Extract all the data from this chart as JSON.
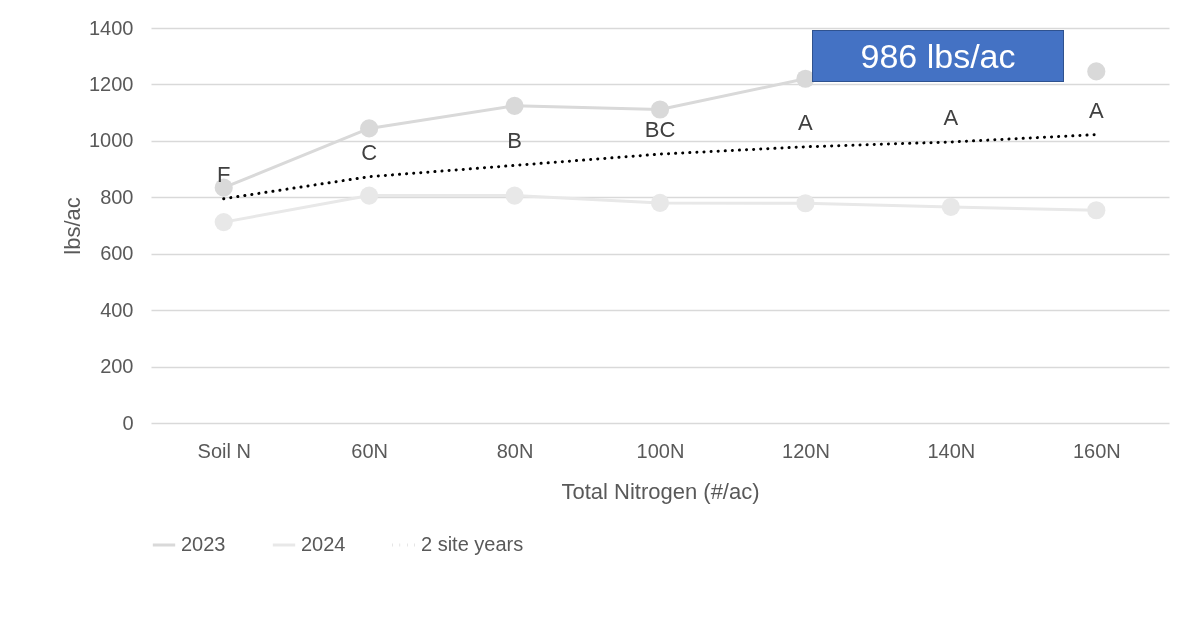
{
  "chart_data": {
    "type": "line",
    "xlabel": "Total Nitrogen (#/ac)",
    "ylabel": "lbs/ac",
    "categories": [
      "Soil N",
      "60N",
      "80N",
      "100N",
      "120N",
      "140N",
      "160N"
    ],
    "series": [
      {
        "name": "2023",
        "color": "#d9d9d9",
        "marker": "circle",
        "line_style": "solid",
        "values": [
          834,
          1044,
          1124,
          1111,
          1220,
          null,
          1246
        ]
      },
      {
        "name": "2024",
        "color": "#e8e8e8",
        "marker": "circle",
        "line_style": "solid",
        "values": [
          712,
          806,
          806,
          780,
          779,
          766,
          754
        ]
      },
      {
        "name": "2 site years",
        "color": "#000000",
        "marker": "none",
        "line_style": "dotted",
        "values": [
          795,
          873,
          913,
          953,
          979,
          996,
          1022
        ]
      }
    ],
    "annotations": [
      {
        "text": "F",
        "x": "Soil N",
        "y": 795
      },
      {
        "text": "C",
        "x": "60N",
        "y": 873
      },
      {
        "text": "B",
        "x": "80N",
        "y": 913
      },
      {
        "text": "BC",
        "x": "100N",
        "y": 953
      },
      {
        "text": "A",
        "x": "120N",
        "y": 979
      },
      {
        "text": "A",
        "x": "140N",
        "y": 996
      },
      {
        "text": "A",
        "x": "160N",
        "y": 1022
      },
      "986 lbs/ac"
    ],
    "ylim": [
      0,
      1400
    ],
    "yticks": [
      0,
      200,
      400,
      600,
      800,
      1000,
      1200,
      1400
    ],
    "grid": "y",
    "legend": "bottom"
  }
}
